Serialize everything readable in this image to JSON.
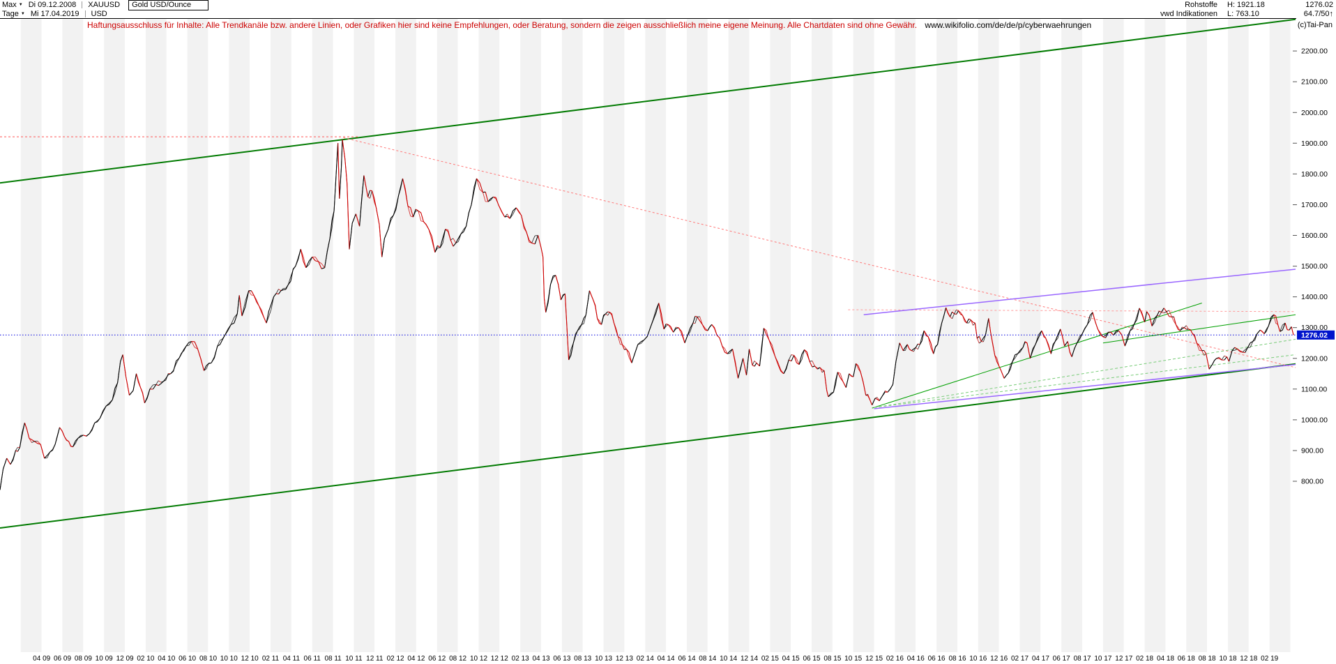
{
  "header": {
    "range_selector": "Max",
    "start_date": "Di 09.12.2008",
    "symbol": "XAUUSD",
    "instrument_name": "Gold USD/Ounce",
    "period_selector": "Tage",
    "end_date": "Mi 17.04.2019",
    "currency": "USD",
    "right": {
      "category": "Rohstoffe",
      "subcategory": "vwd Indikationen",
      "high": "H: 1921.18",
      "low": "L: 763.10",
      "last": "1276.02",
      "indicator": "64.7/50↑"
    },
    "copyright": "(c)Tai-Pan"
  },
  "disclaimer": {
    "text": "Haftungsausschluss für Inhalte: Alle Trendkanäle bzw. andere Linien, oder Grafiken hier sind keine Empfehlungen, oder Beratung, sondern die zeigen ausschließlich meine eigene Meinung. Alle Chartdaten sind ohne Gewähr.",
    "link": "www.wikifolio.com/de/de/p/cyberwaehrungen"
  },
  "chart_data": {
    "type": "line",
    "title": "Gold USD/Ounce (XAUUSD) Tageschart Dez 2008 - Apr 2019",
    "current_price": 1276.02,
    "high": 1921.18,
    "low": 763.1,
    "t_span_months": 124.5,
    "up_color": "#000000",
    "down_color": "#cc0000",
    "current_price_line_color": "#0000dd",
    "grid": false,
    "y_axis": {
      "ticks": [
        800,
        900,
        1000,
        1100,
        1200,
        1300,
        1400,
        1500,
        1600,
        1700,
        1800,
        1900,
        2000,
        2100,
        2200
      ],
      "top_value": 2307,
      "bottom_value": 244
    },
    "x_tick_first_t": 4,
    "x_tick_step": 2,
    "x_tick_labels": [
      "04 09",
      "06 09",
      "08 09",
      "10 09",
      "12 09",
      "02 10",
      "04 10",
      "06 10",
      "08 10",
      "10 10",
      "12 10",
      "02 11",
      "04 11",
      "06 11",
      "08 11",
      "10 11",
      "12 11",
      "02 12",
      "04 12",
      "06 12",
      "08 12",
      "10 12",
      "12 12",
      "02 13",
      "04 13",
      "06 13",
      "08 13",
      "10 13",
      "12 13",
      "02 14",
      "04 14",
      "06 14",
      "08 14",
      "10 14",
      "12 14",
      "02 15",
      "04 15",
      "06 15",
      "08 15",
      "10 15",
      "12 15",
      "02 16",
      "04 16",
      "06 16",
      "08 16",
      "10 16",
      "12 16",
      "02 17",
      "04 17",
      "06 17",
      "08 17",
      "10 17",
      "12 17",
      "02 18",
      "04 18",
      "06 18",
      "08 18",
      "10 18",
      "12 18",
      "02 19"
    ],
    "series": {
      "name": "XAUUSD Gold USD/Ounce",
      "t_months": [
        0,
        0.3,
        0.65,
        1.0,
        1.5,
        1.9,
        2.37,
        2.8,
        3.3,
        3.9,
        4.27,
        4.8,
        5.3,
        5.73,
        6.2,
        6.6,
        7.0,
        7.5,
        8.0,
        8.6,
        9.1,
        9.6,
        10.2,
        10.8,
        11.3,
        11.57,
        11.8,
        12.1,
        12.43,
        12.8,
        13.1,
        13.5,
        13.9,
        14.4,
        15.0,
        15.7,
        16.4,
        17.2,
        17.9,
        18.4,
        19.0,
        19.6,
        20.3,
        20.9,
        21.6,
        22.2,
        22.8,
        23.0,
        23.25,
        23.9,
        24.4,
        24.9,
        25.6,
        26.3,
        27.0,
        27.7,
        28.4,
        28.9,
        29.4,
        30.0,
        30.6,
        31.2,
        31.7,
        32.1,
        32.47,
        32.62,
        32.8,
        32.9,
        33.15,
        33.35,
        33.57,
        33.85,
        34.2,
        34.55,
        34.97,
        35.35,
        35.75,
        36.15,
        36.45,
        36.7,
        36.95,
        37.3,
        37.8,
        38.3,
        38.7,
        39.2,
        39.7,
        40.2,
        40.7,
        41.2,
        41.8,
        42.3,
        42.8,
        43.3,
        43.8,
        44.3,
        44.8,
        45.3,
        45.8,
        46.4,
        46.9,
        47.4,
        47.9,
        48.5,
        49.0,
        49.6,
        50.1,
        50.6,
        51.1,
        51.7,
        52.0,
        52.18,
        52.3,
        52.45,
        52.9,
        53.4,
        53.9,
        54.3,
        54.65,
        55.1,
        55.5,
        55.9,
        56.3,
        56.65,
        57.0,
        57.4,
        57.8,
        58.2,
        58.6,
        59.0,
        59.4,
        59.8,
        60.2,
        60.7,
        61.3,
        61.9,
        62.5,
        63.3,
        63.8,
        64.2,
        64.7,
        65.2,
        65.8,
        66.6,
        67.0,
        67.5,
        68.0,
        68.4,
        68.9,
        69.4,
        69.9,
        70.4,
        70.93,
        71.4,
        71.73,
        72.0,
        72.3,
        72.7,
        73.0,
        73.4,
        73.9,
        74.5,
        75.3,
        75.8,
        76.3,
        76.8,
        77.3,
        77.8,
        78.3,
        78.8,
        79.2,
        79.45,
        79.6,
        80.1,
        80.5,
        81.0,
        81.3,
        81.6,
        82.0,
        82.25,
        82.7,
        83.2,
        83.6,
        83.8,
        84.1,
        84.5,
        84.8,
        85.3,
        85.8,
        86.1,
        86.45,
        86.8,
        87.2,
        87.6,
        88.0,
        88.4,
        88.8,
        89.2,
        89.7,
        90.1,
        90.5,
        90.9,
        91.3,
        91.7,
        92.1,
        92.5,
        92.9,
        93.3,
        93.7,
        93.9,
        94.3,
        94.7,
        95.0,
        95.2,
        95.6,
        96.0,
        96.2,
        96.5,
        96.9,
        97.3,
        97.8,
        98.3,
        98.7,
        99.0,
        99.5,
        100.1,
        100.5,
        101.0,
        101.4,
        101.9,
        102.3,
        102.6,
        103.0,
        103.5,
        104.0,
        104.5,
        105.0,
        105.5,
        106.0,
        106.5,
        107.0,
        107.5,
        108.1,
        108.6,
        109.0,
        109.5,
        110.0,
        110.2,
        110.7,
        111.2,
        111.6,
        112.1,
        112.6,
        113.0,
        113.4,
        113.8,
        114.2,
        114.6,
        115.0,
        115.5,
        115.9,
        116.2,
        116.5,
        116.9,
        117.4,
        117.9,
        118.1,
        118.4,
        118.9,
        119.4,
        119.9,
        120.4,
        120.8,
        121.1,
        121.5,
        121.9,
        122.4,
        122.8,
        123.0,
        123.5,
        123.9,
        124.1,
        124.3
      ],
      "price": [
        772,
        840,
        875,
        855,
        900,
        910,
        990,
        940,
        930,
        920,
        875,
        895,
        920,
        975,
        945,
        930,
        912,
        940,
        950,
        955,
        990,
        1005,
        1045,
        1065,
        1120,
        1190,
        1212,
        1140,
        1080,
        1095,
        1150,
        1105,
        1055,
        1100,
        1115,
        1125,
        1150,
        1200,
        1240,
        1255,
        1230,
        1160,
        1185,
        1240,
        1275,
        1310,
        1345,
        1405,
        1338,
        1420,
        1405,
        1370,
        1315,
        1400,
        1420,
        1440,
        1500,
        1555,
        1495,
        1530,
        1515,
        1495,
        1590,
        1680,
        1900,
        1720,
        1820,
        1912,
        1850,
        1770,
        1555,
        1640,
        1670,
        1630,
        1795,
        1725,
        1745,
        1690,
        1635,
        1530,
        1590,
        1620,
        1665,
        1730,
        1785,
        1695,
        1660,
        1680,
        1645,
        1620,
        1545,
        1560,
        1620,
        1585,
        1575,
        1605,
        1630,
        1700,
        1785,
        1740,
        1710,
        1725,
        1700,
        1660,
        1655,
        1690,
        1665,
        1610,
        1575,
        1600,
        1560,
        1530,
        1395,
        1350,
        1440,
        1470,
        1390,
        1410,
        1195,
        1250,
        1290,
        1310,
        1340,
        1420,
        1390,
        1330,
        1310,
        1345,
        1350,
        1315,
        1270,
        1245,
        1230,
        1185,
        1245,
        1260,
        1300,
        1380,
        1295,
        1310,
        1285,
        1300,
        1250,
        1315,
        1335,
        1310,
        1290,
        1310,
        1275,
        1240,
        1215,
        1230,
        1135,
        1200,
        1145,
        1230,
        1178,
        1185,
        1175,
        1298,
        1260,
        1205,
        1150,
        1195,
        1210,
        1180,
        1228,
        1190,
        1175,
        1170,
        1160,
        1095,
        1075,
        1090,
        1155,
        1125,
        1105,
        1150,
        1140,
        1183,
        1155,
        1080,
        1065,
        1048,
        1070,
        1062,
        1078,
        1090,
        1115,
        1190,
        1250,
        1225,
        1245,
        1225,
        1235,
        1245,
        1290,
        1270,
        1215,
        1245,
        1315,
        1365,
        1335,
        1345,
        1355,
        1340,
        1315,
        1325,
        1315,
        1265,
        1255,
        1275,
        1330,
        1285,
        1210,
        1175,
        1160,
        1135,
        1152,
        1190,
        1215,
        1235,
        1250,
        1200,
        1245,
        1290,
        1265,
        1215,
        1255,
        1295,
        1240,
        1255,
        1205,
        1250,
        1280,
        1310,
        1350,
        1295,
        1270,
        1285,
        1275,
        1290,
        1240,
        1290,
        1312,
        1363,
        1318,
        1352,
        1305,
        1340,
        1350,
        1352,
        1335,
        1310,
        1290,
        1300,
        1295,
        1280,
        1250,
        1225,
        1215,
        1165,
        1180,
        1200,
        1195,
        1205,
        1190,
        1225,
        1230,
        1220,
        1235,
        1255,
        1280,
        1292,
        1280,
        1305,
        1342,
        1310,
        1287,
        1315,
        1292,
        1303,
        1276
      ]
    },
    "overlay_lines": [
      {
        "name": "aufwaerts-trendkanal-oben",
        "color": "#007a00",
        "width": 2,
        "dash": "",
        "t1": 0,
        "v1": 1771,
        "t2": 124.5,
        "v2": 2303
      },
      {
        "name": "aufwaerts-trendkanal-unten",
        "color": "#007a00",
        "width": 2,
        "dash": "",
        "t1": 0,
        "v1": 648,
        "t2": 124.5,
        "v2": 1182
      },
      {
        "name": "allzeithoch-widerstand-1921",
        "color": "#ff5555",
        "width": 1,
        "dash": "3,3",
        "t1": 0,
        "v1": 1921,
        "t2": 34.5,
        "v2": 1921
      },
      {
        "name": "abwaerts-trendlinie",
        "color": "#ff7777",
        "width": 1,
        "dash": "3,3",
        "t1": 33.0,
        "v1": 1918,
        "t2": 124.5,
        "v2": 1170
      },
      {
        "name": "horizontal-widerstand-1360",
        "color": "#ff9999",
        "width": 1,
        "dash": "3,3",
        "t1": 81.5,
        "v1": 1358,
        "t2": 124.5,
        "v2": 1352
      },
      {
        "name": "violett-kanal-oben",
        "color": "#9966ff",
        "width": 1.5,
        "dash": "",
        "t1": 83.0,
        "v1": 1342,
        "t2": 124.5,
        "v2": 1490
      },
      {
        "name": "violett-kanal-unten",
        "color": "#9966ff",
        "width": 1.5,
        "dash": "",
        "t1": 84.0,
        "v1": 1036,
        "t2": 124.5,
        "v2": 1180
      },
      {
        "name": "gruene-unterstuetzung",
        "color": "#00a000",
        "width": 1,
        "dash": "",
        "t1": 83.8,
        "v1": 1038,
        "t2": 115.5,
        "v2": 1380
      },
      {
        "name": "gruen-gestrichelt-1",
        "color": "#77cc77",
        "width": 1,
        "dash": "4,3",
        "t1": 84.0,
        "v1": 1040,
        "t2": 124.5,
        "v2": 1262
      },
      {
        "name": "gruen-gestrichelt-2",
        "color": "#77cc77",
        "width": 1,
        "dash": "4,3",
        "t1": 84.0,
        "v1": 1040,
        "t2": 124.5,
        "v2": 1212
      },
      {
        "name": "gruener-keil",
        "color": "#00a000",
        "width": 1,
        "dash": "",
        "t1": 106.0,
        "v1": 1250,
        "t2": 124.5,
        "v2": 1342
      }
    ]
  }
}
